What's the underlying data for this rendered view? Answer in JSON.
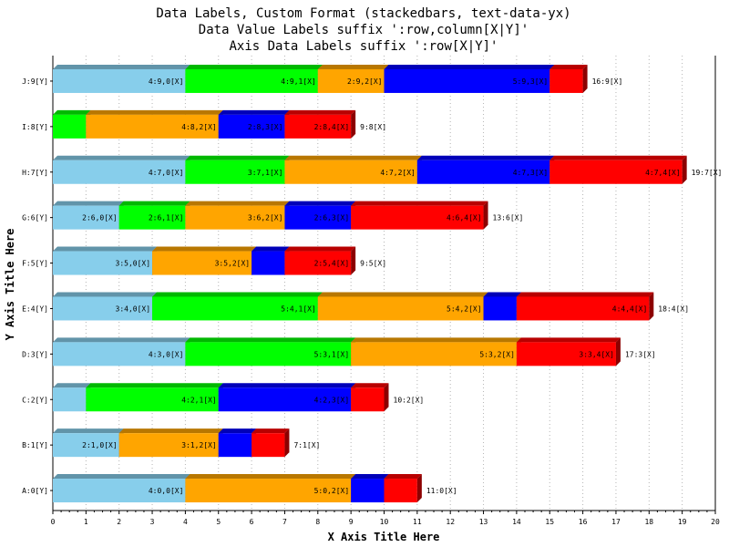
{
  "chart_data": {
    "type": "bar",
    "orientation": "horizontal",
    "stacked": true,
    "title_lines": [
      "Data Labels, Custom Format (stackedbars, text-data-yx)",
      "Data Value Labels suffix ':row,column[X|Y]'",
      "Axis Data Labels suffix ':row[X|Y]'"
    ],
    "xlabel": "X Axis Title Here",
    "ylabel": "Y Axis Title Here",
    "xlim": [
      0,
      20
    ],
    "x_ticks": [
      0,
      1,
      2,
      3,
      4,
      5,
      6,
      7,
      8,
      9,
      10,
      11,
      12,
      13,
      14,
      15,
      16,
      17,
      18,
      19,
      20
    ],
    "grid": "vertical-dotted",
    "categories": [
      "A:0[Y]",
      "B:1[Y]",
      "C:2[Y]",
      "D:3[Y]",
      "E:4[Y]",
      "F:5[Y]",
      "G:6[Y]",
      "H:7[Y]",
      "I:8[Y]",
      "J:9[Y]"
    ],
    "series": [
      {
        "color": "#87ceeb",
        "values": [
          4,
          2,
          1,
          4,
          3,
          3,
          2,
          4,
          0,
          4
        ],
        "labels": [
          "4:0,0[X]",
          "2:1,0[X]",
          "",
          "4:3,0[X]",
          "3:4,0[X]",
          "3:5,0[X]",
          "2:6,0[X]",
          "4:7,0[X]",
          "",
          "4:9,0[X]"
        ]
      },
      {
        "color": "#00ff00",
        "values": [
          0,
          0,
          4,
          5,
          5,
          0,
          2,
          3,
          1,
          4
        ],
        "labels": [
          "",
          "",
          "4:2,1[X]",
          "5:3,1[X]",
          "5:4,1[X]",
          "",
          "2:6,1[X]",
          "3:7,1[X]",
          "",
          "4:9,1[X]"
        ]
      },
      {
        "color": "#ffa500",
        "values": [
          5,
          3,
          0,
          5,
          5,
          3,
          3,
          4,
          4,
          2
        ],
        "labels": [
          "5:0,2[X]",
          "3:1,2[X]",
          "",
          "5:3,2[X]",
          "5:4,2[X]",
          "3:5,2[X]",
          "3:6,2[X]",
          "4:7,2[X]",
          "4:8,2[X]",
          "2:9,2[X]"
        ]
      },
      {
        "color": "#0000ff",
        "values": [
          1,
          1,
          4,
          0,
          1,
          1,
          2,
          4,
          2,
          5
        ],
        "labels": [
          "",
          "",
          "4:2,3[X]",
          "",
          "",
          "",
          "2:6,3[X]",
          "4:7,3[X]",
          "2:8,3[X]",
          "5:9,3[X]"
        ]
      },
      {
        "color": "#ff0000",
        "values": [
          1,
          1,
          1,
          3,
          4,
          2,
          4,
          4,
          2,
          1
        ],
        "labels": [
          "",
          "",
          "",
          "3:3,4[X]",
          "4:4,4[X]",
          "2:5,4[X]",
          "4:6,4[X]",
          "4:7,4[X]",
          "2:8,4[X]",
          ""
        ]
      }
    ],
    "totals": [
      11,
      7,
      10,
      17,
      18,
      9,
      13,
      19,
      9,
      16
    ],
    "total_labels": [
      "11:0[X]",
      "7:1[X]",
      "10:2[X]",
      "17:3[X]",
      "18:4[X]",
      "9:5[X]",
      "13:6[X]",
      "19:7[X]",
      "9:8[X]",
      "16:9[X]"
    ]
  }
}
